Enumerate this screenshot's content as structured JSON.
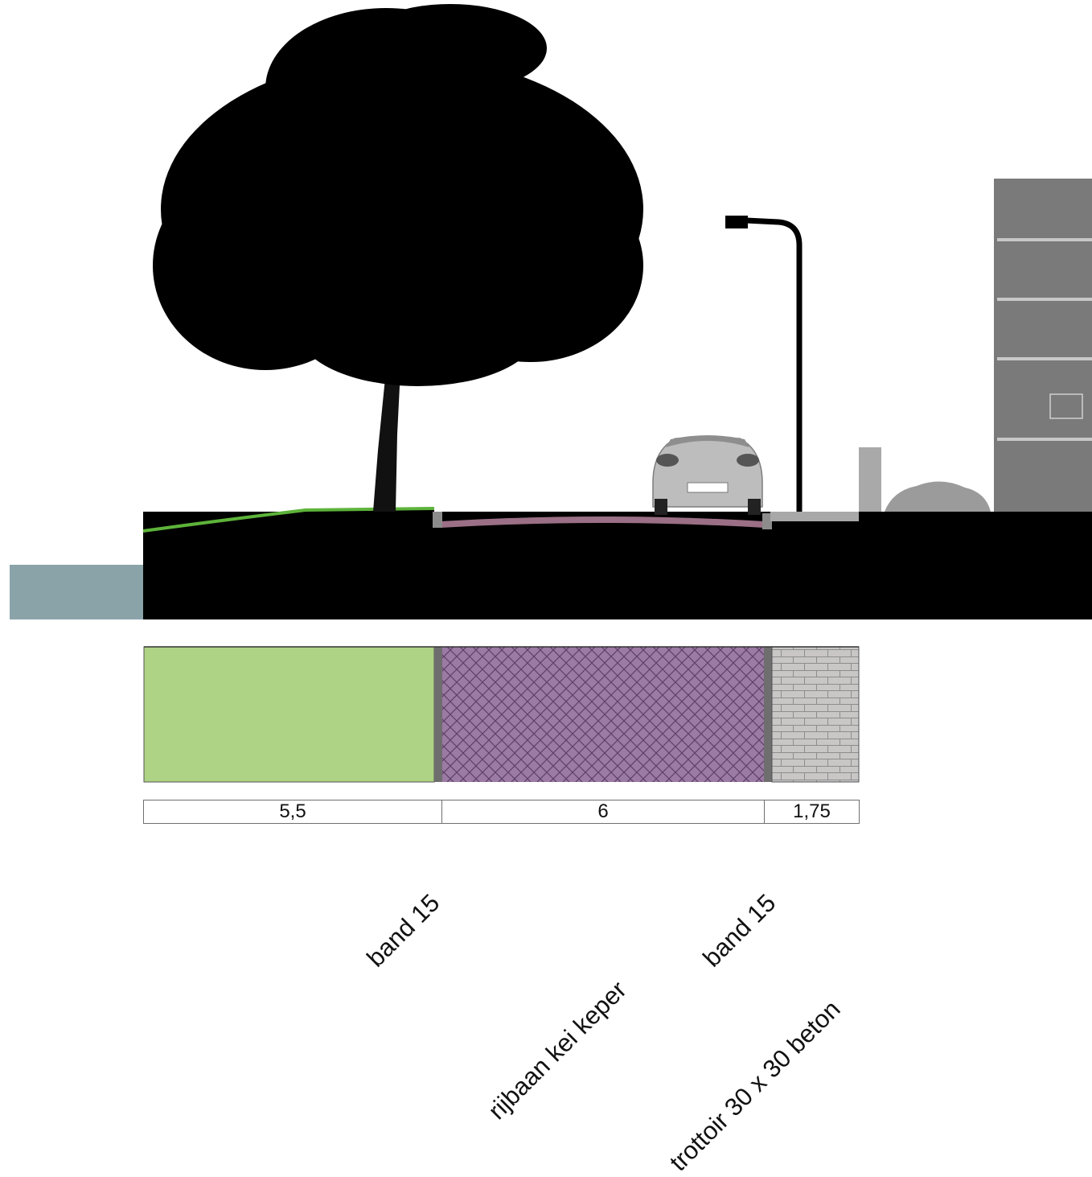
{
  "colors": {
    "ground": "#000000",
    "water": "#8aa3a9",
    "grass": "#aed384",
    "pavement_pattern": "#9b7aa4",
    "curb": "#6e6e6e",
    "sidewalk_tiles": "#c9c6c6",
    "building": "#7a7a7a",
    "car": "#bdbdbd"
  },
  "dimensions": [
    {
      "value": "5,5"
    },
    {
      "value": "6"
    },
    {
      "value": "1,75"
    }
  ],
  "materials": [
    {
      "label": "band 15"
    },
    {
      "label": "rijbaan kei keper"
    },
    {
      "label": "band 15"
    },
    {
      "label": "trottoir 30 x 30 beton"
    }
  ]
}
